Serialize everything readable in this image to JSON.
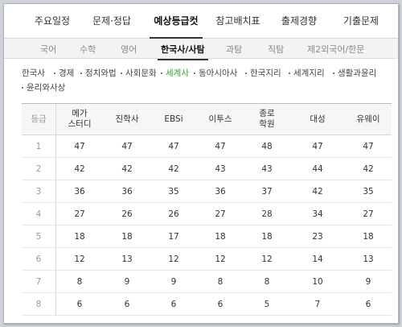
{
  "main_tabs": [
    {
      "label": "주요일정"
    },
    {
      "label": "문제·정답"
    },
    {
      "label": "예상등급컷"
    },
    {
      "label": "참고배치표"
    },
    {
      "label": "출제경향"
    },
    {
      "label": "기출문제"
    }
  ],
  "sub_tabs": [
    {
      "label": "국어"
    },
    {
      "label": "수학"
    },
    {
      "label": "영어"
    },
    {
      "label": "한국사/사탐"
    },
    {
      "label": "과탐"
    },
    {
      "label": "직탐"
    },
    {
      "label": "제2외국어/한문"
    }
  ],
  "filters": [
    {
      "label": "한국사"
    },
    {
      "label": "경제"
    },
    {
      "label": "정치와법"
    },
    {
      "label": "사회문화"
    },
    {
      "label": "세계사"
    },
    {
      "label": "동아시아사"
    },
    {
      "label": "한국지리"
    },
    {
      "label": "세계지리"
    },
    {
      "label": "생활과윤리"
    },
    {
      "label": "윤리와사상"
    }
  ],
  "active": {
    "main_tab": "예상등급컷",
    "sub_tab": "한국사/사탐",
    "filter": "세계사"
  },
  "colors": {
    "active_filter": "#3a9a3e",
    "header_bg": "#f6f6f6"
  },
  "table": {
    "headers": {
      "grade": "등급",
      "megastudy_1": "메가",
      "megastudy_2": "스터디",
      "jinhak": "진학사",
      "ebsi": "EBSi",
      "etoos": "이투스",
      "jongno_1": "종로",
      "jongno_2": "학원",
      "daesung": "대성",
      "uway": "유웨이"
    },
    "rows": [
      {
        "grade": "1",
        "values": [
          "47",
          "47",
          "47",
          "47",
          "48",
          "47",
          "47"
        ]
      },
      {
        "grade": "2",
        "values": [
          "42",
          "42",
          "42",
          "43",
          "43",
          "44",
          "42"
        ]
      },
      {
        "grade": "3",
        "values": [
          "36",
          "36",
          "35",
          "36",
          "37",
          "42",
          "35"
        ]
      },
      {
        "grade": "4",
        "values": [
          "27",
          "26",
          "26",
          "27",
          "28",
          "34",
          "27"
        ]
      },
      {
        "grade": "5",
        "values": [
          "18",
          "18",
          "17",
          "18",
          "18",
          "23",
          "18"
        ]
      },
      {
        "grade": "6",
        "values": [
          "12",
          "13",
          "12",
          "12",
          "12",
          "14",
          "13"
        ]
      },
      {
        "grade": "7",
        "values": [
          "8",
          "9",
          "9",
          "8",
          "8",
          "10",
          "9"
        ]
      },
      {
        "grade": "8",
        "values": [
          "6",
          "6",
          "6",
          "6",
          "5",
          "7",
          "6"
        ]
      }
    ]
  }
}
